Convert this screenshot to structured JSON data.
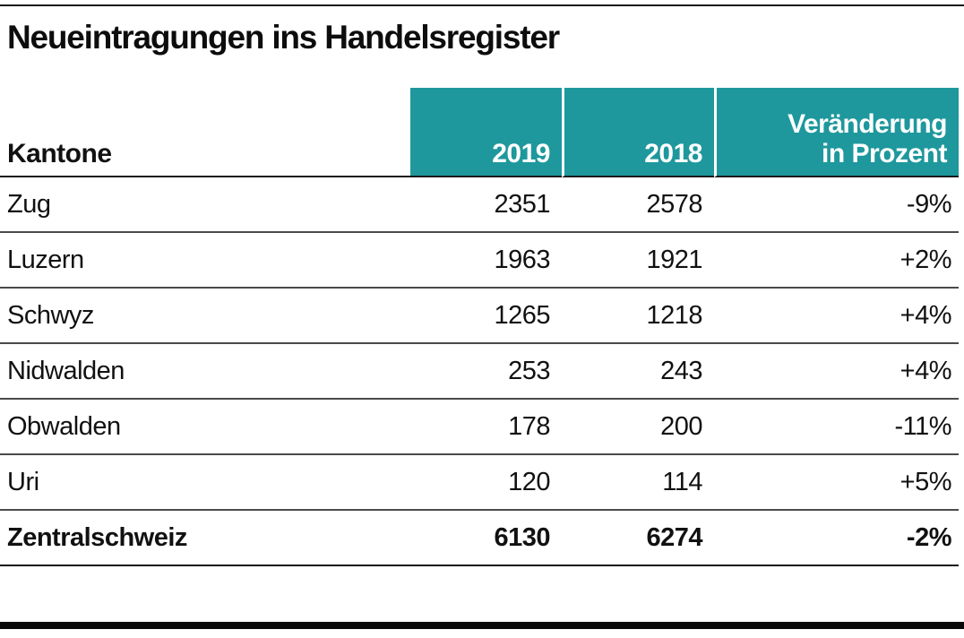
{
  "title": "Neueintragungen ins Handelsregister",
  "colors": {
    "accent_teal": "#1e989d",
    "text": "#111111",
    "row_divider": "#4a4a4a",
    "header_text_on_teal": "#ffffff"
  },
  "table": {
    "header": {
      "kantone": "Kantone",
      "col_2019": "2019",
      "col_2018": "2018",
      "change_line1": "Veränderung",
      "change_line2": "in Prozent"
    },
    "rows": [
      {
        "kanton": "Zug",
        "y2019": "2351",
        "y2018": "2578",
        "change": "-9%"
      },
      {
        "kanton": "Luzern",
        "y2019": "1963",
        "y2018": "1921",
        "change": "+2%"
      },
      {
        "kanton": "Schwyz",
        "y2019": "1265",
        "y2018": "1218",
        "change": "+4%"
      },
      {
        "kanton": "Nidwalden",
        "y2019": "253",
        "y2018": "243",
        "change": "+4%"
      },
      {
        "kanton": "Obwalden",
        "y2019": "178",
        "y2018": "200",
        "change": "-11%"
      },
      {
        "kanton": "Uri",
        "y2019": "120",
        "y2018": "114",
        "change": "+5%"
      }
    ],
    "total": {
      "kanton": "Zentralschweiz",
      "y2019": "6130",
      "y2018": "6274",
      "change": "-2%"
    }
  },
  "chart_data": {
    "type": "table",
    "title": "Neueintragungen ins Handelsregister",
    "columns": [
      "Kantone",
      "2019",
      "2018",
      "Veränderung in Prozent"
    ],
    "rows": [
      [
        "Zug",
        2351,
        2578,
        "-9%"
      ],
      [
        "Luzern",
        1963,
        1921,
        "+2%"
      ],
      [
        "Schwyz",
        1265,
        1218,
        "+4%"
      ],
      [
        "Nidwalden",
        253,
        243,
        "+4%"
      ],
      [
        "Obwalden",
        178,
        200,
        "-11%"
      ],
      [
        "Uri",
        120,
        114,
        "+5%"
      ],
      [
        "Zentralschweiz",
        6130,
        6274,
        "-2%"
      ]
    ]
  }
}
